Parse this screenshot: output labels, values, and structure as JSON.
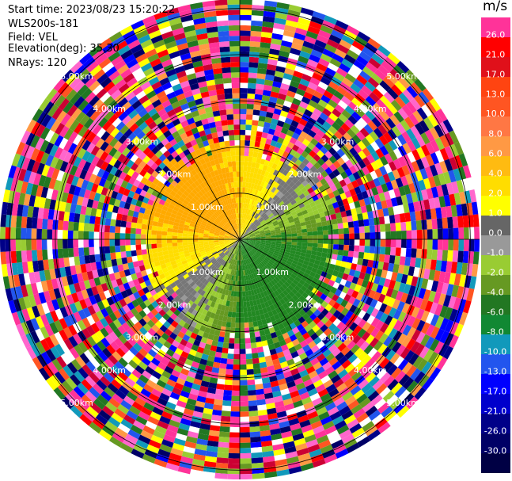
{
  "header": {
    "start_time": "Start time: 2023/08/23 15:20:22",
    "instrument": "WLS200s-181",
    "field": "Field: VEL",
    "elevation": "Elevation(deg): 35.30",
    "nrays": "NRays: 120"
  },
  "chart_data": {
    "type": "heatmap",
    "subtype": "ppi-polar",
    "field": "VEL",
    "units": "m/s",
    "n_rays": 120,
    "elevation_deg": 35.3,
    "range_rings_km": [
      1.0,
      2.0,
      3.0,
      4.0,
      5.0
    ],
    "range_ring_labels": [
      "1.00km",
      "2.00km",
      "3.00km",
      "4.00km",
      "5.00km"
    ],
    "max_range_km": 5.2,
    "valid_data_range_km": 2.25,
    "grid": true,
    "legend_position": "right",
    "colorbar": {
      "ticks": [
        "26.0",
        "21.0",
        "17.0",
        "13.0",
        "10.0",
        "8.0",
        "6.0",
        "4.0",
        "2.0",
        "1.0",
        "0.0",
        "-1.0",
        "-2.0",
        "-4.0",
        "-6.0",
        "-8.0",
        "-10.0",
        "-13.0",
        "-17.0",
        "-21.0",
        "-26.0",
        "-30.0"
      ],
      "colors": [
        "#ff3399",
        "#ff0000",
        "#e0101a",
        "#ff4411",
        "#ff5522",
        "#ff7744",
        "#ff9944",
        "#ffbb11",
        "#ffdd00",
        "#ffff00",
        "#666666",
        "#999999",
        "#99cc33",
        "#669922",
        "#227722",
        "#118833",
        "#1199bb",
        "#2255ee",
        "#0000ff",
        "#0000cc",
        "#000088",
        "#000066",
        "#000044"
      ]
    },
    "flow_pattern": {
      "positive_sector": "north-west (yellow/orange, +1 to +6 m/s)",
      "negative_sector": "south-east (green, -1 to -6 m/s)",
      "near_zero_band": "grey, running north-east to south-west"
    }
  }
}
